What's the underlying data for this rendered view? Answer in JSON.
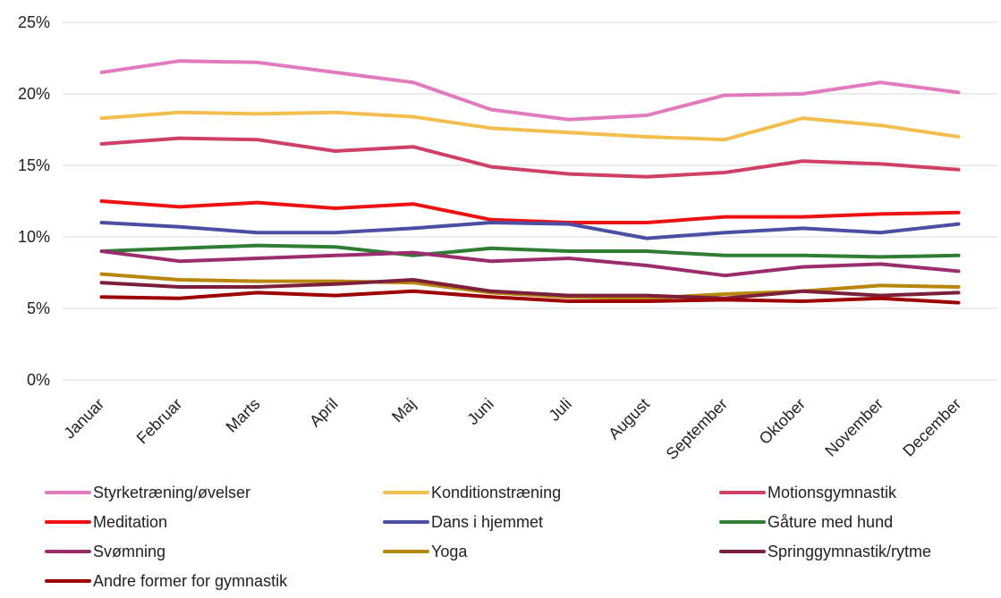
{
  "chart_data": {
    "type": "line",
    "title": "",
    "xlabel": "",
    "ylabel": "",
    "categories": [
      "Januar",
      "Februar",
      "Marts",
      "April",
      "Maj",
      "Juni",
      "Juli",
      "August",
      "September",
      "Oktober",
      "November",
      "December"
    ],
    "ylim": [
      0,
      25
    ],
    "yticks": [
      0,
      5,
      10,
      15,
      20,
      25
    ],
    "ytick_labels": [
      "0%",
      "5%",
      "10%",
      "15%",
      "20%",
      "25%"
    ],
    "grid": "horizontal",
    "legend_position": "bottom",
    "series": [
      {
        "name": "Styrketræning/øvelser",
        "color": "#E27BBE",
        "values": [
          21.5,
          22.3,
          22.2,
          21.5,
          20.8,
          18.9,
          18.2,
          18.5,
          19.9,
          20.0,
          20.8,
          20.1
        ]
      },
      {
        "name": "Konditionstræning",
        "color": "#F2BE4E",
        "values": [
          18.3,
          18.7,
          18.6,
          18.7,
          18.4,
          17.6,
          17.3,
          17.0,
          16.8,
          18.3,
          17.8,
          17.0
        ]
      },
      {
        "name": "Motionsgymnastik",
        "color": "#CF3F66",
        "values": [
          16.5,
          16.9,
          16.8,
          16.0,
          16.3,
          14.9,
          14.4,
          14.2,
          14.5,
          15.3,
          15.1,
          14.7
        ]
      },
      {
        "name": "Meditation",
        "color": "#EE1111",
        "values": [
          12.5,
          12.1,
          12.4,
          12.0,
          12.3,
          11.2,
          11.0,
          11.0,
          11.4,
          11.4,
          11.6,
          11.7
        ]
      },
      {
        "name": "Dans i hjemmet",
        "color": "#4A4FA3",
        "values": [
          11.0,
          10.7,
          10.3,
          10.3,
          10.6,
          11.0,
          10.9,
          9.9,
          10.3,
          10.6,
          10.3,
          10.9
        ]
      },
      {
        "name": "Gåture med hund",
        "color": "#2E7D32",
        "values": [
          9.0,
          9.2,
          9.4,
          9.3,
          8.7,
          9.2,
          9.0,
          9.0,
          8.7,
          8.7,
          8.6,
          8.7
        ]
      },
      {
        "name": "Svømning",
        "color": "#9B2C6E",
        "values": [
          9.0,
          8.3,
          8.5,
          8.7,
          8.9,
          8.3,
          8.5,
          8.0,
          7.3,
          7.9,
          8.1,
          7.6
        ]
      },
      {
        "name": "Yoga",
        "color": "#B8860B",
        "values": [
          7.4,
          7.0,
          6.9,
          6.9,
          6.8,
          6.1,
          5.8,
          5.7,
          6.0,
          6.2,
          6.6,
          6.5
        ]
      },
      {
        "name": "Springgymnastik/rytme",
        "color": "#7B1F3A",
        "values": [
          6.8,
          6.5,
          6.5,
          6.7,
          7.0,
          6.2,
          5.9,
          5.9,
          5.7,
          6.2,
          5.9,
          6.1
        ]
      },
      {
        "name": "Andre former for gymnastik",
        "color": "#9E0000",
        "values": [
          5.8,
          5.7,
          6.1,
          5.9,
          6.2,
          5.8,
          5.5,
          5.5,
          5.6,
          5.5,
          5.7,
          5.4
        ]
      }
    ]
  }
}
